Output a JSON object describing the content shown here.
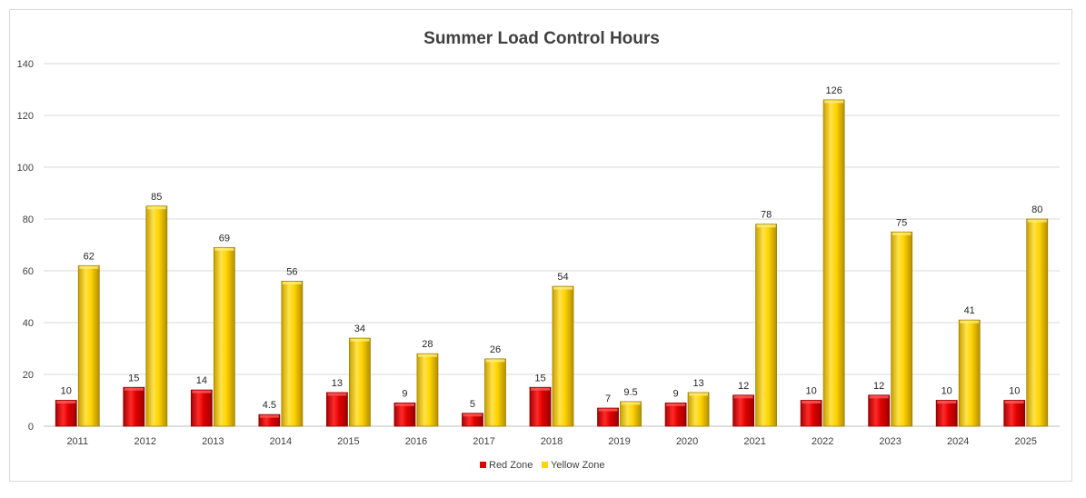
{
  "chart_data": {
    "type": "bar",
    "title": "Summer Load Control Hours",
    "xlabel": "",
    "ylabel": "",
    "ylim": [
      0,
      140
    ],
    "yticks": [
      0,
      20,
      40,
      60,
      80,
      100,
      120,
      140
    ],
    "categories": [
      "2011",
      "2012",
      "2013",
      "2014",
      "2015",
      "2016",
      "2017",
      "2018",
      "2019",
      "2020",
      "2021",
      "2022",
      "2023",
      "2024",
      "2025"
    ],
    "series": [
      {
        "name": "Red Zone",
        "color": "#e00000",
        "values": [
          10,
          15,
          14,
          4.5,
          13,
          9,
          5,
          15,
          7,
          9,
          12,
          10,
          12,
          10,
          10
        ]
      },
      {
        "name": "Yellow Zone",
        "color": "#ffd400",
        "values": [
          62,
          85,
          69,
          56,
          34,
          28,
          26,
          54,
          9.5,
          13,
          78,
          126,
          75,
          41,
          80
        ]
      }
    ],
    "grid": true,
    "legend_position": "bottom"
  }
}
